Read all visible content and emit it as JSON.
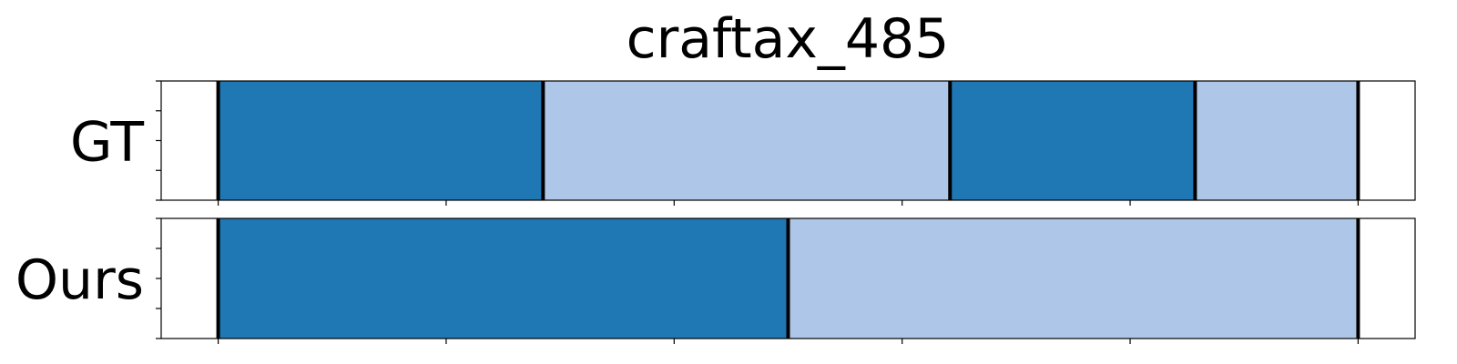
{
  "chart_data": {
    "type": "bar",
    "title": "craftax_485",
    "xlim": [
      -0.5,
      10.5
    ],
    "rows": [
      {
        "label": "GT",
        "segments": [
          {
            "start": 0,
            "end": 2.85,
            "color": "#1f77b4"
          },
          {
            "start": 2.85,
            "end": 6.42,
            "color": "#aec7e8"
          },
          {
            "start": 6.42,
            "end": 8.57,
            "color": "#1f77b4"
          },
          {
            "start": 8.57,
            "end": 10,
            "color": "#aec7e8"
          }
        ],
        "boundaries": [
          0,
          2.85,
          6.42,
          8.57,
          10
        ]
      },
      {
        "label": "Ours",
        "segments": [
          {
            "start": 0,
            "end": 5,
            "color": "#1f77b4"
          },
          {
            "start": 5,
            "end": 10,
            "color": "#aec7e8"
          }
        ],
        "boundaries": [
          0,
          5,
          10
        ]
      }
    ],
    "x_ticks": [
      0,
      2,
      4,
      6,
      8,
      10
    ],
    "y_ticks_per_row": 5,
    "grid": false
  }
}
